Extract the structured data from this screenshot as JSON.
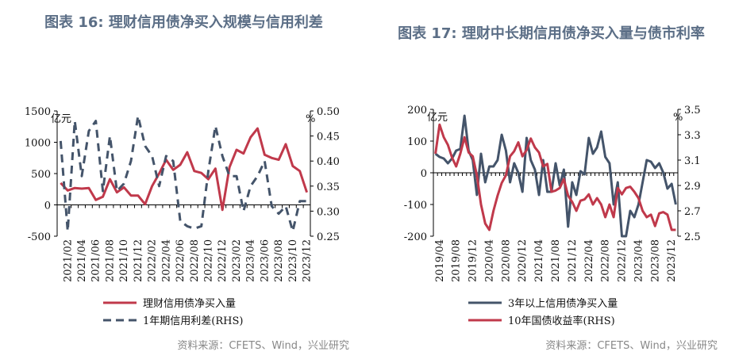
{
  "colors": {
    "red": "#c0394b",
    "blue": "#44546a"
  },
  "chart_data": [
    {
      "type": "line",
      "title": "图表 16: 理财信用债净买入规模与信用利差",
      "left_unit": "亿元",
      "right_unit": "%",
      "start": "2021/01",
      "label_step": 2,
      "first_label": "2021/02",
      "ylim": [
        -500,
        1500
      ],
      "yticks": [
        -500,
        0,
        500,
        1000,
        1500
      ],
      "y2lim": [
        0.25,
        0.5
      ],
      "y2ticks": [
        "0.25",
        "0.30",
        "0.35",
        "0.40",
        "0.45",
        "0.50"
      ],
      "xticks": [
        "2021/02",
        "2021/04",
        "2021/06",
        "2021/08",
        "2021/10",
        "2021/12",
        "2022/02",
        "2022/04",
        "2022/06",
        "2022/08",
        "2022/10",
        "2022/12",
        "2023/02",
        "2023/04",
        "2023/06",
        "2023/08",
        "2023/10",
        "2023/12"
      ],
      "series": [
        {
          "name": "理财信用债净买入量",
          "axis": "left",
          "style": "solid",
          "color": "#c0394b",
          "values": [
            350,
            230,
            270,
            260,
            270,
            80,
            130,
            410,
            200,
            280,
            150,
            150,
            10,
            300,
            500,
            720,
            560,
            640,
            840,
            540,
            510,
            410,
            580,
            -80,
            600,
            880,
            820,
            1080,
            1220,
            800,
            750,
            720,
            970,
            620,
            540,
            200
          ]
        },
        {
          "name": "1年期信用利差(RHS)",
          "axis": "right",
          "style": "dashed",
          "color": "#44546a",
          "values": [
            0.44,
            0.26,
            0.48,
            0.37,
            0.46,
            0.48,
            0.34,
            0.45,
            0.34,
            0.355,
            0.4,
            0.49,
            0.43,
            0.41,
            0.35,
            0.41,
            0.4,
            0.28,
            0.27,
            0.265,
            0.27,
            0.38,
            0.47,
            0.41,
            0.37,
            0.37,
            0.3,
            0.35,
            0.37,
            0.4,
            0.31,
            0.295,
            0.31,
            0.26,
            0.32,
            0.32
          ]
        }
      ],
      "source": "资料来源：CFETS、Wind，兴业研究"
    },
    {
      "type": "line",
      "title": "图表 17: 理财中长期信用债净买入量与债市利率",
      "left_unit": "亿元",
      "right_unit": "%",
      "start": "2019/03",
      "label_step": 4,
      "first_label": "2019/04",
      "ylim": [
        -200,
        200
      ],
      "yticks": [
        -200,
        -100,
        0,
        100,
        200
      ],
      "y2lim": [
        2.5,
        3.5
      ],
      "y2ticks": [
        "2.5",
        "2.7",
        "2.9",
        "3.1",
        "3.3",
        "3.5"
      ],
      "xticks": [
        "2019/04",
        "2019/08",
        "2019/12",
        "2020/04",
        "2020/08",
        "2020/12",
        "2021/04",
        "2021/08",
        "2021/12",
        "2022/04",
        "2022/08",
        "2022/12",
        "2023/04",
        "2023/08",
        "2023/12"
      ],
      "series": [
        {
          "name": "3年以上信用债净买入量",
          "axis": "left",
          "style": "solid",
          "color": "#44546a",
          "values": [
            60,
            50,
            45,
            30,
            45,
            70,
            75,
            180,
            70,
            40,
            -70,
            60,
            -30,
            20,
            20,
            40,
            120,
            70,
            -30,
            30,
            0,
            -60,
            110,
            40,
            10,
            -70,
            40,
            -60,
            -60,
            30,
            -40,
            10,
            -170,
            -30,
            -70,
            5,
            -5,
            110,
            60,
            80,
            130,
            50,
            30,
            -100,
            -30,
            -200,
            -200,
            -120,
            -140,
            -100,
            -30,
            40,
            35,
            15,
            30,
            0,
            -50,
            -35,
            -100
          ]
        },
        {
          "name": "10年国债收益率(RHS)",
          "axis": "right",
          "style": "solid",
          "color": "#c0394b",
          "values": [
            3.15,
            3.38,
            3.28,
            3.22,
            3.12,
            3.05,
            3.15,
            3.28,
            3.16,
            3.13,
            2.98,
            2.75,
            2.6,
            2.55,
            2.7,
            2.82,
            2.92,
            2.98,
            3.13,
            3.17,
            3.24,
            3.13,
            3.18,
            3.27,
            3.2,
            3.16,
            3.05,
            3.07,
            2.85,
            2.86,
            2.88,
            2.95,
            2.82,
            2.77,
            2.7,
            2.78,
            2.79,
            2.83,
            2.75,
            2.8,
            2.75,
            2.65,
            2.75,
            2.65,
            2.88,
            2.83,
            2.88,
            2.89,
            2.85,
            2.8,
            2.7,
            2.65,
            2.67,
            2.58,
            2.68,
            2.69,
            2.67,
            2.55,
            2.55
          ]
        }
      ],
      "source": "资料来源：CFETS、Wind，兴业研究"
    }
  ]
}
